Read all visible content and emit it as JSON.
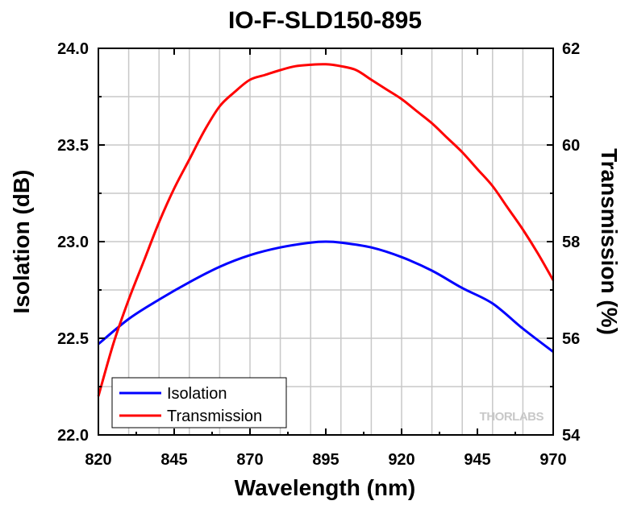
{
  "chart_data": {
    "type": "line",
    "title": "IO-F-SLD150-895",
    "xlabel": "Wavelength (nm)",
    "ylabel": "Isolation (dB)",
    "y2label": "Transmission (%)",
    "xlim": [
      820,
      970
    ],
    "ylim": [
      22.0,
      24.0
    ],
    "y2lim": [
      54,
      62
    ],
    "x_ticks": [
      "820",
      "845",
      "870",
      "895",
      "920",
      "945",
      "970"
    ],
    "y_ticks": [
      "22.0",
      "22.5",
      "23.0",
      "23.5",
      "24.0"
    ],
    "y2_ticks": [
      "54",
      "56",
      "58",
      "60",
      "62"
    ],
    "grid": true,
    "legend_position": "bottom-left",
    "series": [
      {
        "name": "Isolation",
        "axis": "left",
        "color": "#0000ff",
        "x": [
          820,
          830,
          840,
          850,
          860,
          870,
          880,
          890,
          895,
          900,
          910,
          920,
          930,
          940,
          950,
          960,
          970
        ],
        "y": [
          22.47,
          22.6,
          22.7,
          22.79,
          22.87,
          22.93,
          22.97,
          22.995,
          23.0,
          22.995,
          22.97,
          22.92,
          22.85,
          22.76,
          22.68,
          22.55,
          22.43
        ]
      },
      {
        "name": "Transmission",
        "axis": "right",
        "color": "#ff0000",
        "x": [
          820,
          825,
          830,
          835,
          840,
          845,
          850,
          855,
          860,
          865,
          870,
          875,
          880,
          885,
          890,
          895,
          900,
          905,
          910,
          915,
          920,
          925,
          930,
          935,
          940,
          945,
          950,
          955,
          960,
          965,
          970
        ],
        "y": [
          54.8,
          55.9,
          56.8,
          57.6,
          58.4,
          59.1,
          59.7,
          60.3,
          60.8,
          61.1,
          61.35,
          61.45,
          61.55,
          61.63,
          61.66,
          61.67,
          61.63,
          61.55,
          61.35,
          61.15,
          60.95,
          60.7,
          60.45,
          60.15,
          59.85,
          59.5,
          59.15,
          58.7,
          58.25,
          57.75,
          57.2
        ]
      }
    ],
    "watermark": "THORLABS"
  }
}
